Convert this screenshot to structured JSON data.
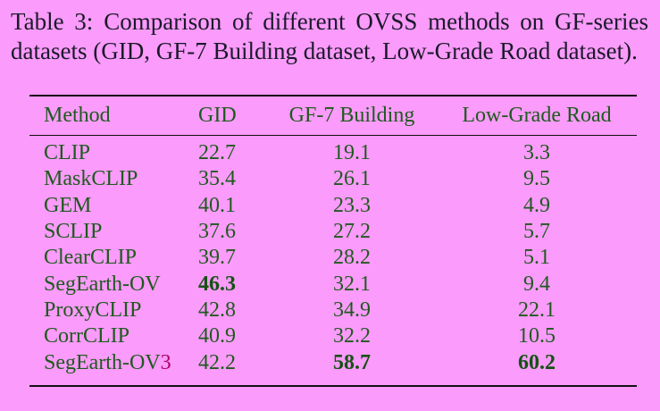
{
  "caption": {
    "label": "Table 3:",
    "text": "Comparison of different OVSS methods on GF-series datasets (GID, GF-7 Building dataset, Low-Grade Road dataset)."
  },
  "table": {
    "headers": [
      "Method",
      "GID",
      "GF-7 Building",
      "Low-Grade Road"
    ],
    "rows": [
      {
        "method": "CLIP",
        "gid": "22.7",
        "gf7": "19.1",
        "road": "3.3"
      },
      {
        "method": "MaskCLIP",
        "gid": "35.4",
        "gf7": "26.1",
        "road": "9.5"
      },
      {
        "method": "GEM",
        "gid": "40.1",
        "gf7": "23.3",
        "road": "4.9"
      },
      {
        "method": "SCLIP",
        "gid": "37.6",
        "gf7": "27.2",
        "road": "5.7"
      },
      {
        "method": "ClearCLIP",
        "gid": "39.7",
        "gf7": "28.2",
        "road": "5.1"
      },
      {
        "method": "SegEarth-OV",
        "gid": "46.3",
        "gf7": "32.1",
        "road": "9.4"
      },
      {
        "method": "ProxyCLIP",
        "gid": "42.8",
        "gf7": "34.9",
        "road": "22.1"
      },
      {
        "method": "CorrCLIP",
        "gid": "40.9",
        "gf7": "32.2",
        "road": "10.5"
      },
      {
        "method": "SegEarth-OV",
        "method_suffix": "3",
        "gid": "42.2",
        "gf7": "58.7",
        "road": "60.2"
      }
    ]
  },
  "colors": {
    "background": "#fb9bfb",
    "table_text": "#1e5a1e",
    "accent_suffix": "#b0006a"
  }
}
